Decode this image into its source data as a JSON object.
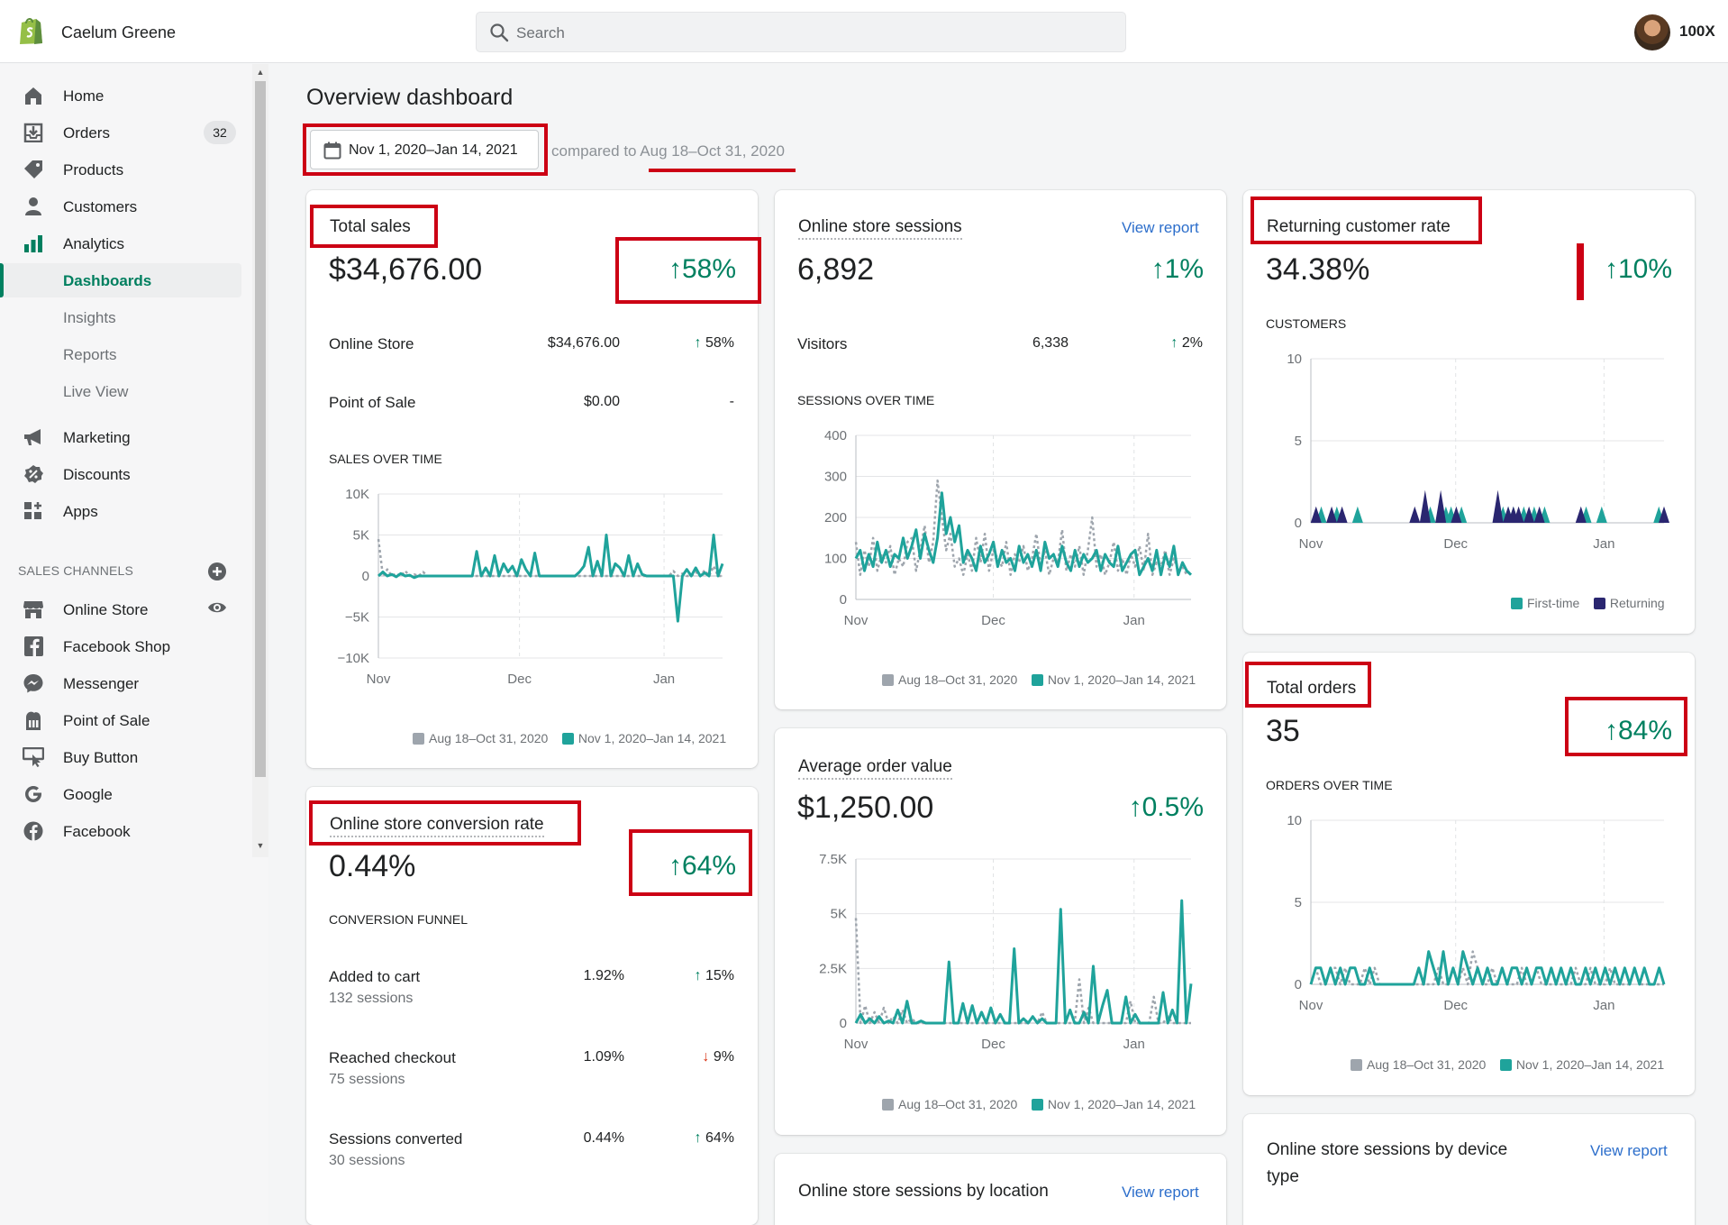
{
  "topbar": {
    "store_name": "Caelum Greene",
    "search_placeholder": "Search",
    "account": "100X"
  },
  "sidebar": {
    "items": [
      {
        "label": "Home",
        "icon": "home-icon"
      },
      {
        "label": "Orders",
        "icon": "orders-icon",
        "badge": "32"
      },
      {
        "label": "Products",
        "icon": "tag-icon"
      },
      {
        "label": "Customers",
        "icon": "person-icon"
      },
      {
        "label": "Analytics",
        "icon": "bar-chart-icon"
      }
    ],
    "analytics_sub": [
      {
        "label": "Dashboards",
        "active": true
      },
      {
        "label": "Insights"
      },
      {
        "label": "Reports"
      },
      {
        "label": "Live View"
      }
    ],
    "items2": [
      {
        "label": "Marketing",
        "icon": "megaphone-icon"
      },
      {
        "label": "Discounts",
        "icon": "discount-icon"
      },
      {
        "label": "Apps",
        "icon": "apps-icon"
      }
    ],
    "sales_channels_heading": "SALES CHANNELS",
    "channels": [
      {
        "label": "Online Store",
        "icon": "store-icon"
      },
      {
        "label": "Facebook Shop",
        "icon": "facebook-shop-icon"
      },
      {
        "label": "Messenger",
        "icon": "messenger-icon"
      },
      {
        "label": "Point of Sale",
        "icon": "pos-icon"
      },
      {
        "label": "Buy Button",
        "icon": "buy-button-icon"
      },
      {
        "label": "Google",
        "icon": "google-icon"
      },
      {
        "label": "Facebook",
        "icon": "facebook-icon"
      }
    ]
  },
  "main": {
    "title": "Overview dashboard",
    "date_range": "Nov 1, 2020–Jan 14, 2021",
    "compared_prefix": "compared to ",
    "compared_range": "Aug 18–Oct 31, 2020"
  },
  "colors": {
    "current": "#1fa39b",
    "previous": "#9ea5ad",
    "returning": "#2a2670",
    "positive": "#008060",
    "negative": "#d72c0d",
    "annotation": "#cc0014"
  },
  "legend": {
    "previous": "Aug 18–Oct 31, 2020",
    "current": "Nov 1, 2020–Jan 14, 2021",
    "first_time": "First-time",
    "returning": "Returning"
  },
  "total_sales": {
    "title": "Total sales",
    "value": "$34,676.00",
    "change": "58%",
    "rows": [
      {
        "label": "Online Store",
        "value": "$34,676.00",
        "change": "58%",
        "dir": "up"
      },
      {
        "label": "Point of Sale",
        "value": "$0.00",
        "change": "-",
        "dir": "none"
      }
    ],
    "chart_label": "SALES OVER TIME"
  },
  "conversion": {
    "title": "Online store conversion rate",
    "value": "0.44%",
    "change": "64%",
    "funnel_label": "CONVERSION FUNNEL",
    "rows": [
      {
        "label": "Added to cart",
        "sub": "132 sessions",
        "value": "1.92%",
        "change": "15%",
        "dir": "up"
      },
      {
        "label": "Reached checkout",
        "sub": "75 sessions",
        "value": "1.09%",
        "change": "9%",
        "dir": "down"
      },
      {
        "label": "Sessions converted",
        "sub": "30 sessions",
        "value": "0.44%",
        "change": "64%",
        "dir": "up"
      }
    ]
  },
  "sessions": {
    "title": "Online store sessions",
    "link": "View report",
    "value": "6,892",
    "change": "1%",
    "row": {
      "label": "Visitors",
      "value": "6,338",
      "change": "2%"
    },
    "chart_label": "SESSIONS OVER TIME"
  },
  "aov": {
    "title": "Average order value",
    "value": "$1,250.00",
    "change": "0.5%"
  },
  "location": {
    "title": "Online store sessions by location",
    "link": "View report"
  },
  "returning": {
    "title": "Returning customer rate",
    "value": "34.38%",
    "change": "10%",
    "chart_label": "CUSTOMERS"
  },
  "orders": {
    "title": "Total orders",
    "value": "35",
    "change": "84%",
    "chart_label": "ORDERS OVER TIME"
  },
  "device": {
    "title_line1": "Online store sessions by device",
    "title_line2": "type",
    "link": "View report"
  },
  "chart_data": [
    {
      "type": "line",
      "title": "SALES OVER TIME",
      "x_ticks": [
        "Nov",
        "Dec",
        "Jan"
      ],
      "y_ticks": [
        "10K",
        "5K",
        "0",
        "−5K",
        "−10K"
      ],
      "ylim": [
        -10000,
        10000
      ],
      "series": [
        {
          "name": "Nov 1, 2020–Jan 14, 2021",
          "values": [
            0,
            500,
            0,
            200,
            -100,
            300,
            0,
            100,
            -200,
            0,
            0,
            0,
            0,
            0,
            0,
            0,
            0,
            0,
            0,
            0,
            0,
            0,
            3000,
            0,
            1000,
            0,
            2500,
            0,
            1500,
            500,
            1200,
            0,
            2000,
            800,
            0,
            2800,
            0,
            0,
            0,
            0,
            0,
            0,
            0,
            0,
            0,
            500,
            1200,
            3500,
            0,
            1800,
            0,
            5000,
            0,
            1500,
            1000,
            0,
            2500,
            0,
            1500,
            200,
            0,
            0,
            0,
            0,
            0,
            0,
            0,
            -5500,
            0,
            800,
            0,
            1000,
            0,
            400,
            0,
            5000,
            0,
            1500
          ]
        },
        {
          "name": "Aug 18–Oct 31, 2020",
          "values": [
            4500,
            0,
            800,
            0,
            300,
            0,
            600,
            0,
            200,
            0,
            500,
            0,
            0,
            0,
            0,
            0,
            0,
            0,
            0,
            0,
            0,
            0,
            0,
            0,
            0,
            0,
            0,
            0,
            0,
            0,
            0,
            0,
            0,
            0,
            0,
            0,
            0,
            0,
            0,
            0,
            0,
            0,
            0,
            0,
            0,
            0,
            0,
            0,
            0,
            0,
            0,
            0,
            0,
            0,
            0,
            0,
            0,
            0,
            0,
            0,
            0,
            0,
            0,
            0,
            0,
            0,
            600,
            0,
            300,
            0,
            0,
            500,
            0,
            700,
            0,
            1200,
            0,
            0
          ]
        }
      ]
    },
    {
      "type": "line",
      "title": "SESSIONS OVER TIME",
      "x_ticks": [
        "Nov",
        "Dec",
        "Jan"
      ],
      "y_ticks": [
        "400",
        "300",
        "200",
        "100",
        "0"
      ],
      "ylim": [
        0,
        400
      ],
      "series": [
        {
          "name": "Nov 1, 2020–Jan 14, 2021",
          "values": [
            100,
            120,
            70,
            110,
            80,
            140,
            90,
            120,
            80,
            110,
            100,
            150,
            100,
            130,
            170,
            100,
            160,
            120,
            90,
            150,
            260,
            160,
            200,
            140,
            180,
            90,
            120,
            100,
            70,
            130,
            90,
            110,
            140,
            80,
            120,
            90,
            100,
            70,
            130,
            90,
            110,
            80,
            120,
            70,
            140,
            100,
            110,
            80,
            130,
            90,
            70,
            120,
            80,
            110,
            90,
            100,
            120,
            70,
            110,
            90,
            80,
            130,
            70,
            90,
            110,
            120,
            60,
            80,
            100,
            70,
            120,
            60,
            110,
            80,
            130,
            60,
            90,
            70,
            60
          ]
        },
        {
          "name": "Aug 18–Oct 31, 2020",
          "values": [
            140,
            60,
            120,
            80,
            150,
            70,
            110,
            90,
            130,
            60,
            100,
            80,
            140,
            150,
            70,
            120,
            180,
            90,
            140,
            290,
            200,
            120,
            160,
            80,
            100,
            60,
            110,
            70,
            150,
            90,
            160,
            70,
            120,
            100,
            80,
            140,
            60,
            110,
            90,
            130,
            70,
            100,
            160,
            80,
            120,
            60,
            100,
            90,
            170,
            70,
            110,
            80,
            130,
            60,
            120,
            200,
            80,
            110,
            60,
            90,
            140,
            70,
            100,
            60,
            110,
            80,
            130,
            70,
            160,
            60,
            90,
            80,
            120,
            60,
            100,
            70,
            80,
            60,
            70
          ]
        }
      ]
    },
    {
      "type": "line",
      "title": "",
      "x_ticks": [
        "Nov",
        "Dec",
        "Jan"
      ],
      "y_ticks": [
        "7.5K",
        "5K",
        "2.5K",
        "0"
      ],
      "ylim": [
        0,
        7500
      ],
      "series": [
        {
          "name": "Nov 1, 2020–Jan 14, 2021",
          "values": [
            0,
            400,
            0,
            200,
            0,
            300,
            0,
            100,
            0,
            600,
            0,
            1000,
            0,
            0,
            100,
            0,
            0,
            0,
            0,
            0,
            2800,
            0,
            0,
            900,
            0,
            800,
            0,
            500,
            0,
            700,
            0,
            400,
            0,
            0,
            3400,
            0,
            200,
            0,
            300,
            0,
            200,
            0,
            0,
            0,
            5200,
            0,
            600,
            0,
            0,
            500,
            0,
            2600,
            0,
            800,
            1500,
            0,
            0,
            0,
            1200,
            0,
            400,
            0,
            0,
            0,
            0,
            0,
            1400,
            0,
            600,
            0,
            5600,
            0,
            1800
          ]
        },
        {
          "name": "Aug 18–Oct 31, 2020",
          "values": [
            4800,
            0,
            800,
            0,
            500,
            0,
            700,
            0,
            300,
            0,
            600,
            0,
            200,
            0,
            0,
            0,
            0,
            0,
            0,
            0,
            0,
            0,
            0,
            0,
            0,
            0,
            0,
            0,
            0,
            0,
            0,
            0,
            0,
            0,
            0,
            0,
            0,
            0,
            300,
            0,
            500,
            0,
            0,
            0,
            0,
            0,
            0,
            0,
            2000,
            0,
            700,
            0,
            0,
            0,
            0,
            0,
            0,
            0,
            0,
            1000,
            0,
            0,
            0,
            0,
            1200,
            0,
            0,
            300,
            0,
            0,
            0,
            0,
            0
          ]
        }
      ]
    },
    {
      "type": "area",
      "title": "CUSTOMERS",
      "x_ticks": [
        "Nov",
        "Dec",
        "Jan"
      ],
      "y_ticks": [
        "10",
        "5",
        "0"
      ],
      "ylim": [
        0,
        10
      ],
      "series": [
        {
          "name": "First-time",
          "values": [
            0,
            0,
            1,
            0,
            0,
            1,
            0,
            0,
            0,
            1,
            0,
            0,
            0,
            0,
            0,
            0,
            0,
            0,
            0,
            0,
            0,
            0,
            1,
            1,
            0,
            0,
            1,
            1,
            0,
            1,
            0,
            0,
            0,
            0,
            0,
            0,
            0,
            1,
            1,
            1,
            0,
            1,
            0,
            1,
            0,
            1,
            0,
            0,
            0,
            0,
            0,
            0,
            0,
            1,
            0,
            0,
            1,
            0,
            0,
            0,
            0,
            0,
            0,
            0,
            0,
            0,
            0,
            1,
            0
          ]
        },
        {
          "name": "Returning",
          "values": [
            0,
            1,
            0,
            0,
            1,
            0,
            1,
            0,
            0,
            0,
            0,
            0,
            0,
            0,
            0,
            0,
            0,
            0,
            0,
            0,
            1,
            0,
            2,
            0,
            0,
            2,
            0,
            0,
            1,
            0,
            0,
            0,
            0,
            0,
            0,
            0,
            2,
            0,
            1,
            1,
            1,
            0,
            1,
            0,
            1,
            0,
            0,
            0,
            0,
            0,
            0,
            0,
            1,
            0,
            0,
            0,
            0,
            0,
            0,
            0,
            0,
            0,
            0,
            0,
            0,
            0,
            0,
            0,
            1
          ]
        }
      ]
    },
    {
      "type": "line",
      "title": "ORDERS OVER TIME",
      "x_ticks": [
        "Nov",
        "Dec",
        "Jan"
      ],
      "y_ticks": [
        "10",
        "5",
        "0"
      ],
      "ylim": [
        0,
        10
      ],
      "series": [
        {
          "name": "Nov 1, 2020–Jan 14, 2021",
          "values": [
            0,
            1,
            1,
            0,
            1,
            0,
            1,
            0,
            1,
            1,
            0,
            0,
            1,
            0,
            0,
            0,
            0,
            0,
            0,
            0,
            0,
            0,
            1,
            0,
            2,
            1,
            0,
            2,
            0,
            1,
            0,
            2,
            1,
            0,
            1,
            0,
            1,
            0,
            0,
            1,
            0,
            1,
            1,
            0,
            1,
            0,
            1,
            1,
            0,
            1,
            0,
            1,
            0,
            1,
            0,
            0,
            1,
            0,
            1,
            0,
            1,
            0,
            1,
            0,
            1,
            0,
            1,
            0,
            1,
            0,
            0,
            1,
            0
          ]
        },
        {
          "name": "Aug 18–Oct 31, 2020",
          "values": [
            0,
            1,
            0,
            0,
            1,
            1,
            0,
            1,
            0,
            0,
            0,
            1,
            0,
            1,
            0,
            0,
            0,
            0,
            0,
            0,
            0,
            0,
            0,
            0,
            0,
            0,
            1,
            0,
            0,
            1,
            0,
            1,
            0,
            2,
            1,
            0,
            0,
            1,
            0,
            1,
            0,
            0,
            0,
            1,
            0,
            0,
            1,
            0,
            0,
            0,
            0,
            0,
            0,
            0,
            1,
            0,
            0,
            1,
            0,
            0,
            0,
            1,
            0,
            0,
            0,
            0,
            1,
            0,
            0,
            0,
            0,
            0,
            0
          ]
        }
      ]
    }
  ]
}
